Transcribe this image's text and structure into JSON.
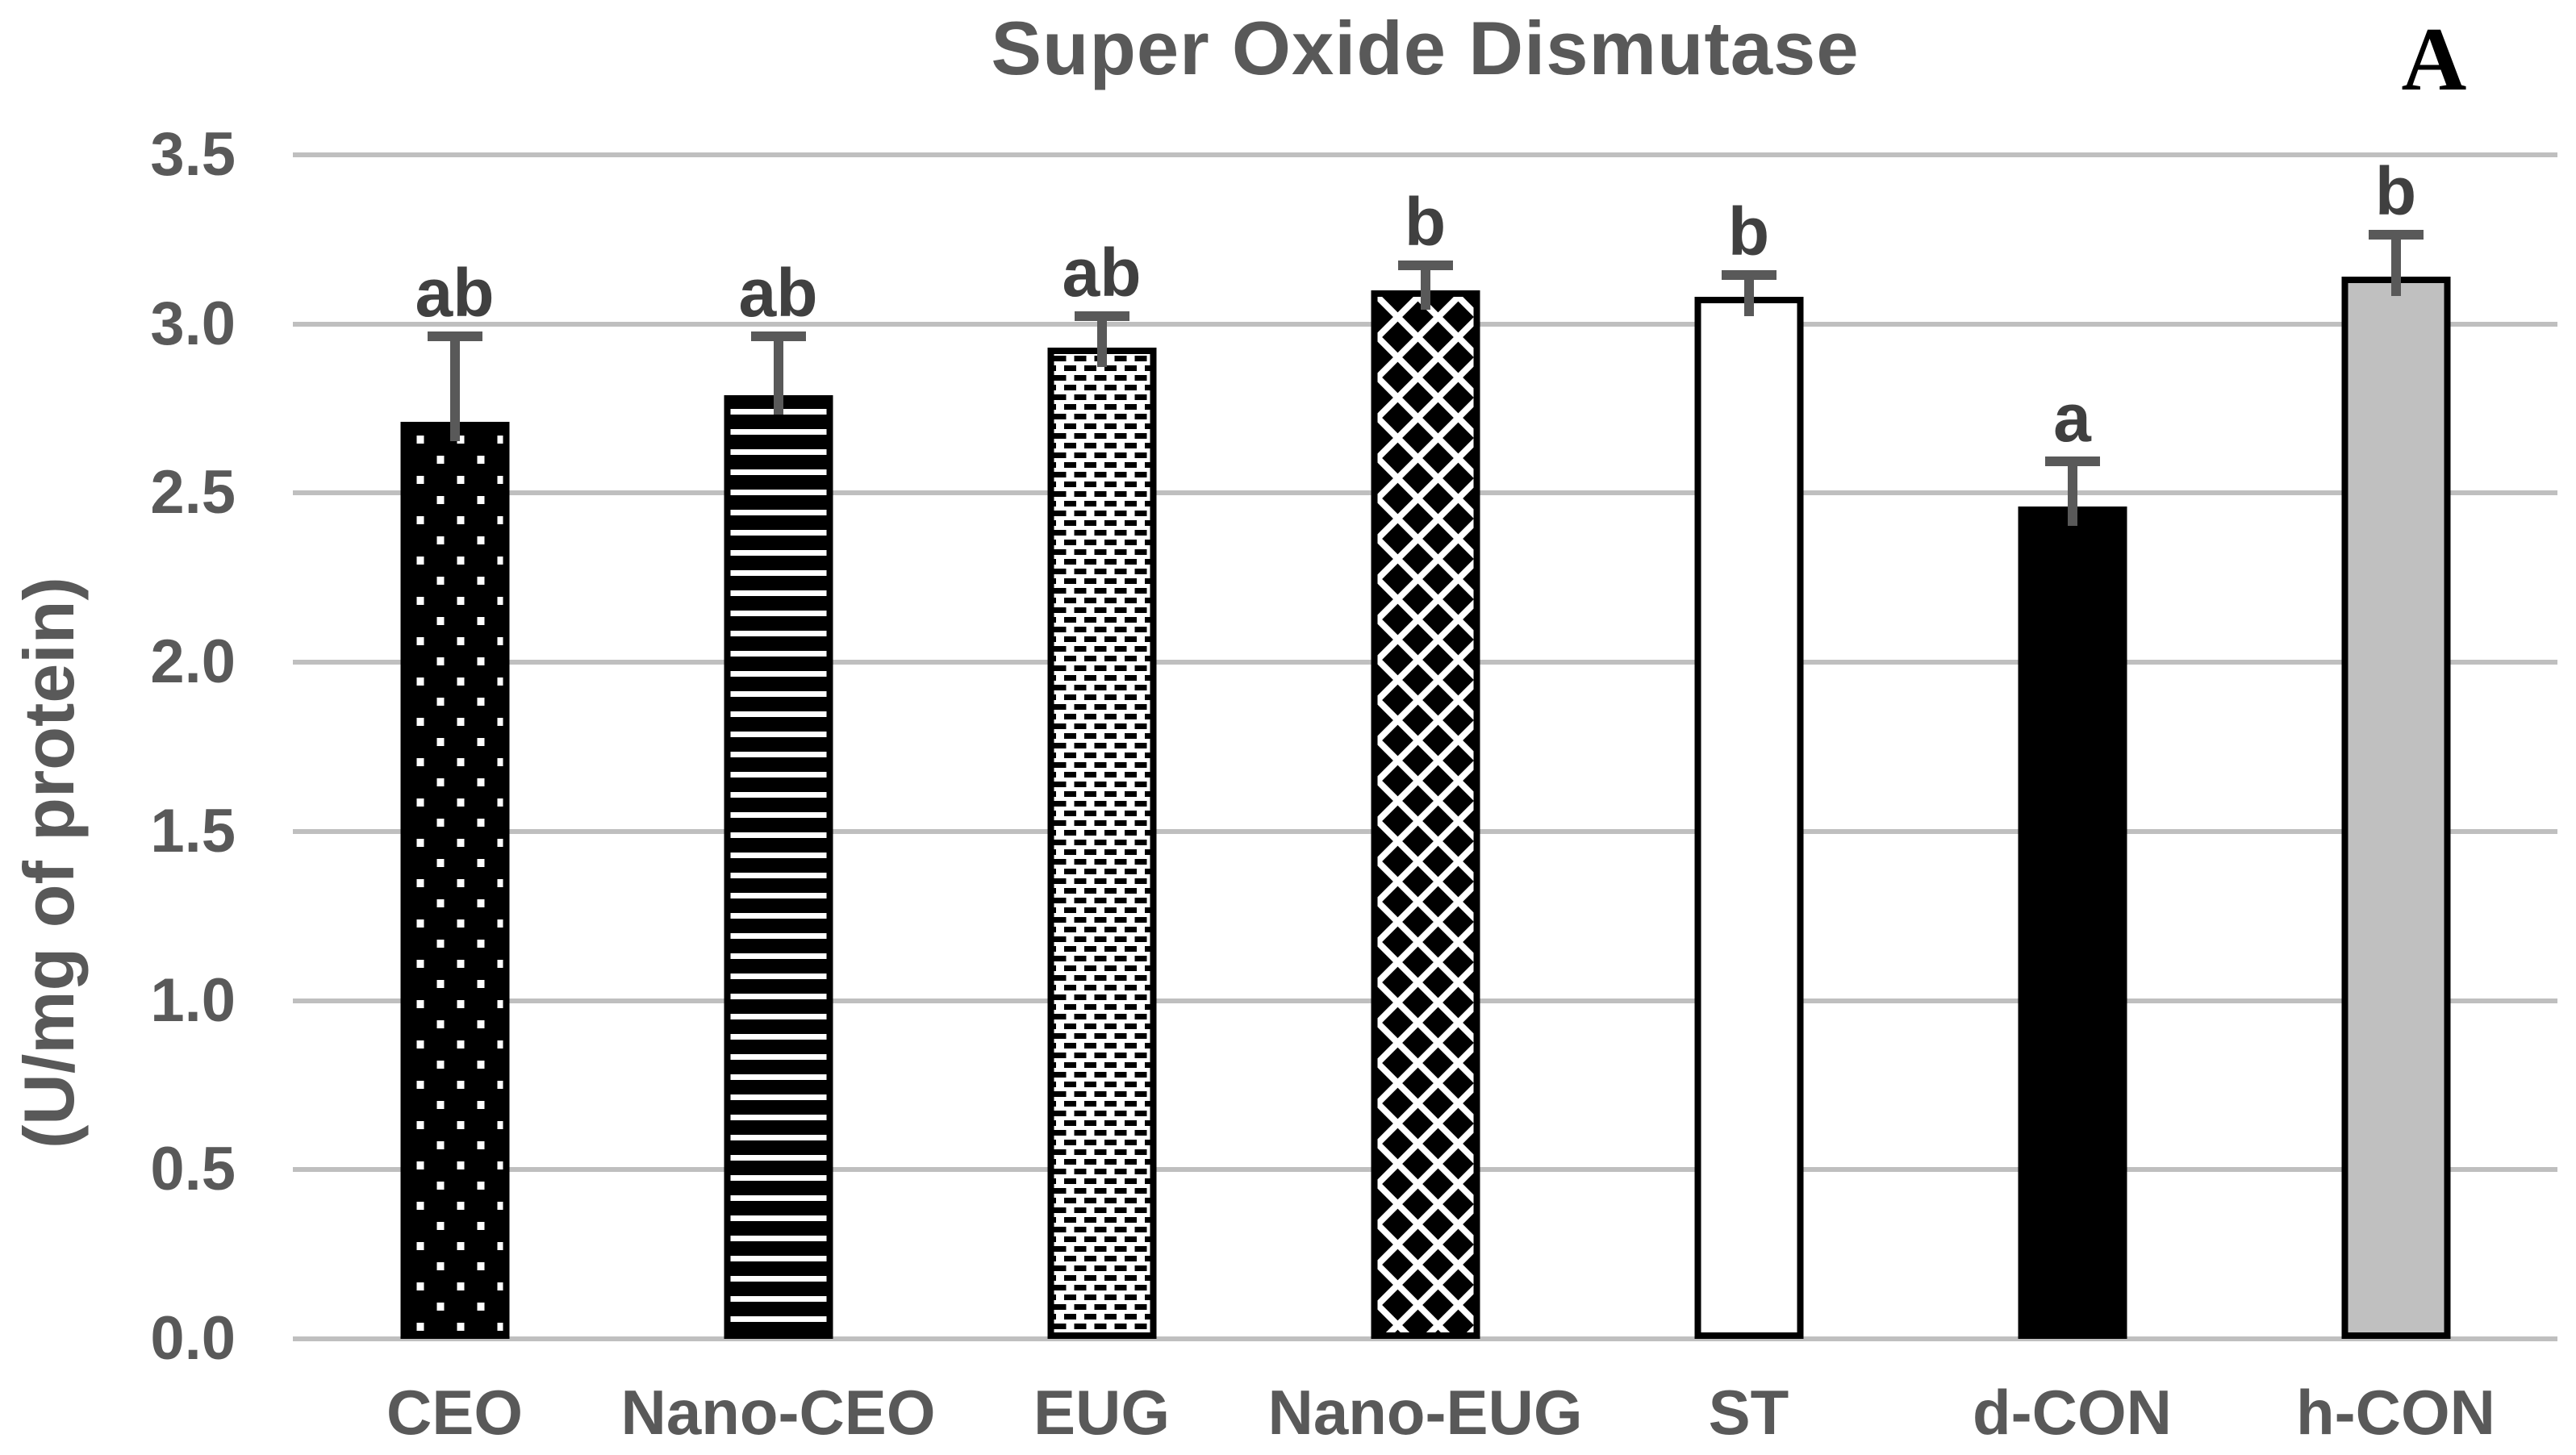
{
  "chart_data": {
    "type": "bar",
    "title": "Super Oxide Dismutase",
    "panel_label": "A",
    "ylabel": "(U/mg of protein)",
    "xlabel": "",
    "ylim": [
      0,
      3.5
    ],
    "ytick_step": 0.5,
    "yticks": [
      "3.5",
      "3.0",
      "2.5",
      "2.0",
      "1.5",
      "1.0",
      "0.5",
      "0.0"
    ],
    "grid": true,
    "legend": false,
    "categories": [
      "CEO",
      "Nano-CEO",
      "EUG",
      "Nano-EUG",
      "ST",
      "d-CON",
      "h-CON"
    ],
    "values": [
      2.71,
      2.79,
      2.93,
      3.1,
      3.08,
      2.46,
      3.14
    ],
    "errors": [
      0.24,
      0.16,
      0.08,
      0.06,
      0.05,
      0.12,
      0.11
    ],
    "sig_letters": [
      "ab",
      "ab",
      "ab",
      "b",
      "b",
      "a",
      "b"
    ],
    "bar_patterns": [
      "black-with-white-dots",
      "black-with-white-horizontal-stripes",
      "white-with-black-dashes",
      "black-with-white-diamond-lattice",
      "white",
      "solid-black",
      "gray"
    ],
    "colors": {
      "text": "#595959",
      "sig_letters": "#404040",
      "gridline": "#BFBFBF",
      "error_bar": "#595959",
      "bar_border": "#000000",
      "gray_fill": "#C0C0C0",
      "panel_label": "#000000",
      "background": "#FFFFFF"
    }
  }
}
